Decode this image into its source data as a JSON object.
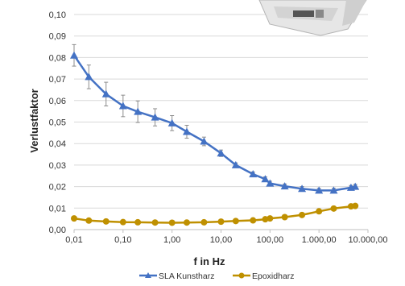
{
  "chart_data": {
    "type": "line",
    "xscale": "log",
    "xlabel": "f in Hz",
    "ylabel": "Verlustfaktor",
    "ylim": [
      0,
      0.1
    ],
    "xlim": [
      0.01,
      10000
    ],
    "grid": "horizontal",
    "legend_position": "bottom",
    "y_ticks": [
      "0,00",
      "0,01",
      "0,02",
      "0,03",
      "0,04",
      "0,05",
      "0,06",
      "0,07",
      "0,08",
      "0,09",
      "0,10"
    ],
    "x_ticks": [
      "0,01",
      "0,10",
      "1,00",
      "10,00",
      "100,00",
      "1.000,00",
      "10.000,00"
    ],
    "series": [
      {
        "name": "SLA Kunstharz",
        "color": "#4472C4",
        "marker": "triangle",
        "x": [
          0.01,
          0.02,
          0.045,
          0.1,
          0.2,
          0.45,
          1,
          2,
          4.5,
          10,
          20,
          45,
          80,
          100,
          200,
          450,
          1000,
          2000,
          4500,
          5500
        ],
        "y": [
          0.081,
          0.071,
          0.063,
          0.0575,
          0.0548,
          0.0522,
          0.0495,
          0.0455,
          0.041,
          0.0355,
          0.03,
          0.0258,
          0.0235,
          0.0215,
          0.0202,
          0.019,
          0.0182,
          0.0182,
          0.0195,
          0.02
        ],
        "err": [
          0.005,
          0.0055,
          0.0055,
          0.005,
          0.005,
          0.004,
          0.0035,
          0.003,
          0.002,
          0.0015,
          0.001,
          0.001,
          0.001,
          0.001,
          0.001,
          0.001,
          0.001,
          0.001,
          0.001,
          0.001
        ]
      },
      {
        "name": "Epoxidharz",
        "color": "#BF9000",
        "marker": "circle",
        "x": [
          0.01,
          0.02,
          0.045,
          0.1,
          0.2,
          0.45,
          1,
          2,
          4.5,
          10,
          20,
          45,
          80,
          100,
          200,
          450,
          1000,
          2000,
          4500,
          5500
        ],
        "y": [
          0.0052,
          0.0042,
          0.0038,
          0.0035,
          0.0034,
          0.0033,
          0.0032,
          0.0033,
          0.0034,
          0.0037,
          0.004,
          0.0043,
          0.0048,
          0.0052,
          0.0058,
          0.0068,
          0.0085,
          0.0098,
          0.0108,
          0.011
        ],
        "err": [
          0,
          0,
          0,
          0,
          0,
          0,
          0,
          0,
          0,
          0,
          0,
          0,
          0,
          0,
          0,
          0,
          0,
          0,
          0,
          0
        ]
      }
    ]
  }
}
